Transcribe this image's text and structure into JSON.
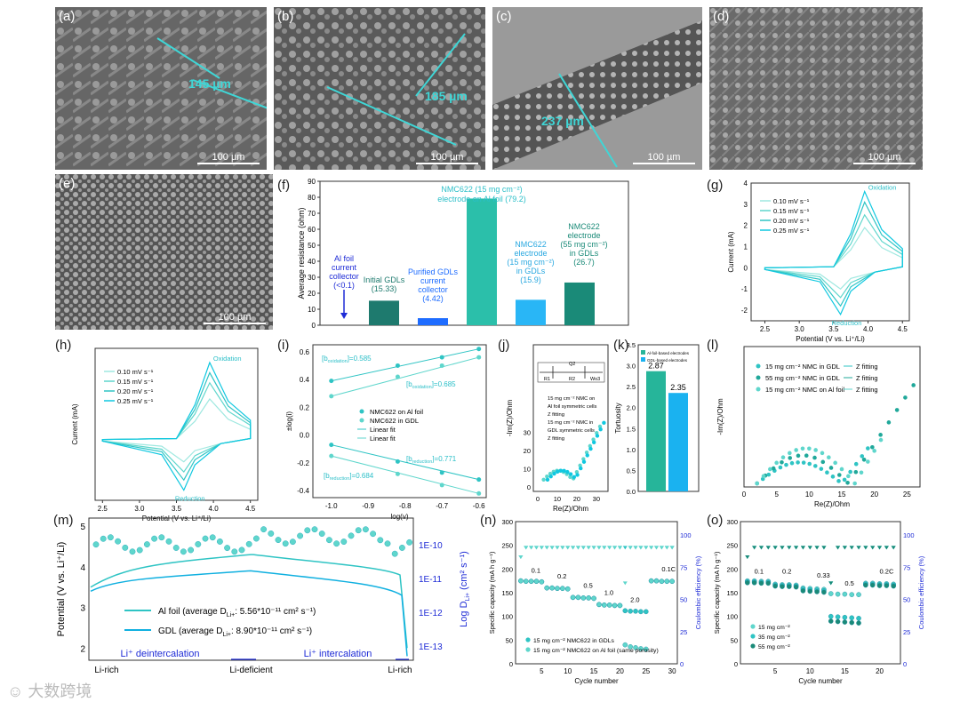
{
  "sem": {
    "a": {
      "label": "(a)",
      "measure": "145 µm",
      "scale": "100 µm"
    },
    "b": {
      "label": "(b)",
      "measure": "185 µm",
      "scale": "100 µm"
    },
    "c": {
      "label": "(c)",
      "measure": "237 µm",
      "scale": "100 µm"
    },
    "d": {
      "label": "(d)",
      "scale": "100 µm"
    },
    "e": {
      "label": "(e)",
      "scale": "100 µm"
    }
  },
  "panel_labels": {
    "f": "(f)",
    "g": "(g)",
    "h": "(h)",
    "i": "(i)",
    "j": "(j)",
    "k": "(k)",
    "l": "(l)",
    "m": "(m)",
    "n": "(n)",
    "o": "(o)"
  },
  "watermark": "大数跨境",
  "chart_data": [
    {
      "id": "f",
      "type": "bar",
      "ylabel": "Average resistance (ohm)",
      "ylim": [
        0,
        90
      ],
      "yticks": [
        0,
        10,
        20,
        30,
        40,
        50,
        60,
        70,
        80,
        90
      ],
      "values": [
        0.1,
        15.33,
        4.42,
        79.2,
        15.9,
        26.7
      ],
      "colors": [
        "#ffffff",
        "#1e7a6e",
        "#1e6cff",
        "#2bbfaa",
        "#29b6f6",
        "#1a8a78"
      ],
      "annotations": {
        "al": [
          "Al foil",
          "current",
          "collector",
          "(<0.1)"
        ],
        "initial": [
          "Initial GDLs",
          "(15.33)"
        ],
        "purified": [
          "Purified GDLs",
          "current",
          "collector",
          "(4.42)"
        ],
        "nmc_al": [
          "NMC622 (15 mg cm⁻²)",
          "electrode on Al foil (79.2)"
        ],
        "nmc_gdl15": [
          "NMC622",
          "electrode",
          "(15 mg cm⁻²)",
          "in GDLs",
          "(15.9)"
        ],
        "nmc_gdl55": [
          "NMC622",
          "electrode",
          "(55 mg cm⁻²)",
          "in GDLs",
          "(26.7)"
        ]
      }
    },
    {
      "id": "g",
      "type": "line",
      "xlabel": "Potential (V vs. Li⁺/Li)",
      "ylabel": "Current (mA)",
      "xlim": [
        2.3,
        4.6
      ],
      "ylim": [
        -2.5,
        4
      ],
      "xticks": [
        "2.5",
        "3.0",
        "3.5",
        "4.0",
        "4.5"
      ],
      "yticks": [
        "-2",
        "-1",
        "0",
        "1",
        "2",
        "3",
        "4"
      ],
      "legend": [
        "0.10 mV s⁻¹",
        "0.15 mV s⁻¹",
        "0.20 mV s⁻¹",
        "0.25 mV s⁻¹"
      ],
      "annotations": [
        "Oxidation",
        "Reduction"
      ],
      "peaks": {
        "ox": [
          1.9,
          2.5,
          3.1,
          3.6
        ],
        "red": [
          -1.0,
          -1.4,
          -1.8,
          -2.2
        ]
      }
    },
    {
      "id": "h",
      "type": "line",
      "xlabel": "Potential (V vs. Li⁺/Li)",
      "ylabel": "Current (mA)",
      "xlim": [
        2.4,
        4.6
      ],
      "ylim": [
        -3,
        4.5
      ],
      "xticks": [
        "2.5",
        "3.0",
        "3.5",
        "4.0",
        "4.5"
      ],
      "legend": [
        "0.10 mV s⁻¹",
        "0.15 mV s⁻¹",
        "0.20 mV s⁻¹",
        "0.25 mV s⁻¹"
      ],
      "annotations": [
        "Oxidation",
        "Reduction"
      ],
      "peaks": {
        "ox": [
          2.0,
          2.8,
          3.3,
          3.8
        ],
        "red": [
          -1.1,
          -1.6,
          -2.0,
          -2.5
        ]
      }
    },
    {
      "id": "i",
      "type": "scatter",
      "xlabel": "log(v)",
      "ylabel": "±log(i)",
      "xlim": [
        -1.05,
        -0.58
      ],
      "ylim": [
        -0.45,
        0.65
      ],
      "xticks": [
        "-1.0",
        "-0.9",
        "-0.8",
        "-0.7",
        "-0.6"
      ],
      "yticks": [
        "-0.4",
        "-0.2",
        "0.0",
        "0.2",
        "0.4",
        "0.6"
      ],
      "x": [
        -1.0,
        -0.82,
        -0.7,
        -0.6
      ],
      "series": [
        {
          "name": "NMC622 on Al foil",
          "values": [
            0.39,
            0.5,
            0.56,
            0.62
          ]
        },
        {
          "name": "NMC622 in GDL",
          "values": [
            0.28,
            0.42,
            0.5,
            0.56
          ]
        },
        {
          "name": "NMC622 on Al foil",
          "values": [
            -0.07,
            -0.19,
            -0.27,
            -0.32
          ]
        },
        {
          "name": "NMC622 in GDL",
          "values": [
            -0.15,
            -0.28,
            -0.36,
            -0.42
          ]
        }
      ],
      "legend": [
        "NMC622 on Al foil",
        "NMC622 in GDL",
        "Linear fit",
        "Linear fit"
      ],
      "annotations": [
        "[b",
        "oxidation",
        "]=0.585",
        "[b",
        "oxidation",
        "]=0.685",
        "[b",
        "reduction",
        "]=0.771",
        "[b",
        "reduction",
        "]=0.684"
      ]
    },
    {
      "id": "j",
      "type": "scatter",
      "xlabel": "Re(Z)/Ohm",
      "ylabel": "-Im(Z)/Ohm",
      "xticks": [
        "0",
        "10",
        "20",
        "30"
      ],
      "yticks": [
        "0",
        "10",
        "20",
        "30"
      ],
      "legend": [
        "15 mg cm⁻² NMC on",
        "Al foil symmetric cells",
        "Z fitting",
        "15 mg cm⁻² NMC in",
        "GDL symmetric cells",
        "Z fitting"
      ],
      "circuit": [
        "R1",
        "Q2",
        "R2",
        "Wo3"
      ]
    },
    {
      "id": "k",
      "type": "bar",
      "ylabel": "Tortuosity",
      "ylim": [
        0,
        3.5
      ],
      "yticks": [
        "0.0",
        "0.5",
        "1.0",
        "1.5",
        "2.0",
        "2.5",
        "3.0",
        "3.5"
      ],
      "categories": [
        "Al-foil-based electrodes",
        "GDL-based electrodes"
      ],
      "values": [
        2.87,
        2.35
      ],
      "value_labels": [
        "2.87",
        "2.35"
      ],
      "colors": [
        "#26b59a",
        "#1ab2f0"
      ]
    },
    {
      "id": "l",
      "type": "scatter",
      "xlabel": "Re(Z)/Ohm",
      "ylabel": "-Im(Z)/Ohm",
      "xlim": [
        0,
        27
      ],
      "ylim": [
        0,
        40
      ],
      "xticks": [
        "0",
        "5",
        "10",
        "15",
        "20",
        "25"
      ],
      "legend": [
        "15 mg cm⁻² NMC in GDL",
        "55 mg cm⁻² NMC in GDL",
        "15 mg cm⁻² NMC on Al foil",
        "Z fitting",
        "Z fitting",
        "Z fitting"
      ]
    },
    {
      "id": "m",
      "type": "line",
      "ylabel": "Potential (V vs. Li⁺/Li)",
      "y2label": "Log D",
      "y2label_sub": "Li+",
      "y2label_units": " (cm² s⁻¹)",
      "yticks": [
        "2",
        "3",
        "4",
        "5"
      ],
      "y2ticks": [
        "1E-10",
        "1E-11",
        "1E-12",
        "1E-13"
      ],
      "xcategories": [
        "Li-rich",
        "Li-deficient",
        "Li-rich"
      ],
      "legend": [
        "Al foil (average D",
        ": 5.56*10⁻¹¹ cm² s⁻¹)",
        "GDL (average D",
        ": 8.90*10⁻¹¹ cm² s⁻¹)"
      ],
      "legend_sub": "Li+",
      "annotations": [
        "Li⁺ deintercalation",
        "Li⁺ intercalation"
      ]
    },
    {
      "id": "n",
      "type": "scatter",
      "xlabel": "Cycle number",
      "ylabel": "Specific capacity (mA h g⁻¹)",
      "y2label": "Coulombic efficiency (%)",
      "xlim": [
        0,
        31
      ],
      "ylim": [
        0,
        300
      ],
      "xticks": [
        "5",
        "10",
        "15",
        "20",
        "25",
        "30"
      ],
      "yticks": [
        "0",
        "50",
        "100",
        "150",
        "200",
        "250",
        "300"
      ],
      "y2ticks": [
        "0",
        "25",
        "50",
        "75",
        "100"
      ],
      "rate_labels": [
        "0.1",
        "0.2",
        "0.5",
        "1.0",
        "2.0",
        "0.1C"
      ],
      "series": [
        {
          "name": "15 mg cm⁻² NMC622 in GDLs",
          "values": [
            175,
            174,
            174,
            174,
            173,
            160,
            160,
            159,
            159,
            158,
            140,
            140,
            139,
            139,
            138,
            125,
            124,
            124,
            123,
            123,
            112,
            111,
            111,
            110,
            110,
            175,
            175,
            174,
            174,
            174
          ]
        },
        {
          "name": "15 mg cm⁻² NMC622 on Al foil (same porosity)",
          "values": [
            175,
            174,
            174,
            174,
            173,
            160,
            160,
            159,
            159,
            158,
            140,
            140,
            139,
            139,
            138,
            125,
            124,
            124,
            123,
            123,
            40,
            36,
            34,
            32,
            31,
            175,
            175,
            174,
            174,
            174
          ]
        }
      ]
    },
    {
      "id": "o",
      "type": "scatter",
      "xlabel": "Cycle number",
      "ylabel": "Specific capacity (mA h g⁻¹)",
      "y2label": "Coulombic efficiency (%)",
      "xlim": [
        0,
        23
      ],
      "ylim": [
        0,
        300
      ],
      "xticks": [
        "5",
        "10",
        "15",
        "20"
      ],
      "yticks": [
        "0",
        "50",
        "100",
        "150",
        "200",
        "250",
        "300"
      ],
      "y2ticks": [
        "0",
        "25",
        "50",
        "75",
        "100"
      ],
      "rate_labels": [
        "0.1",
        "0.2",
        "0.33",
        "0.5",
        "0.2C"
      ],
      "series": [
        {
          "name": "15 mg cm⁻²",
          "values": [
            175,
            175,
            174,
            174,
            168,
            167,
            167,
            166,
            160,
            159,
            158,
            157,
            148,
            147,
            147,
            146,
            146,
            170,
            170,
            169,
            169,
            168
          ]
        },
        {
          "name": "35 mg cm⁻²",
          "values": [
            173,
            173,
            172,
            172,
            166,
            165,
            165,
            164,
            157,
            156,
            155,
            154,
            100,
            99,
            98,
            97,
            96,
            168,
            168,
            167,
            167,
            166
          ]
        },
        {
          "name": "55 mg cm⁻²",
          "values": [
            171,
            171,
            170,
            170,
            164,
            163,
            163,
            162,
            154,
            153,
            152,
            151,
            90,
            89,
            88,
            87,
            86,
            166,
            166,
            165,
            165,
            164
          ]
        }
      ]
    }
  ]
}
